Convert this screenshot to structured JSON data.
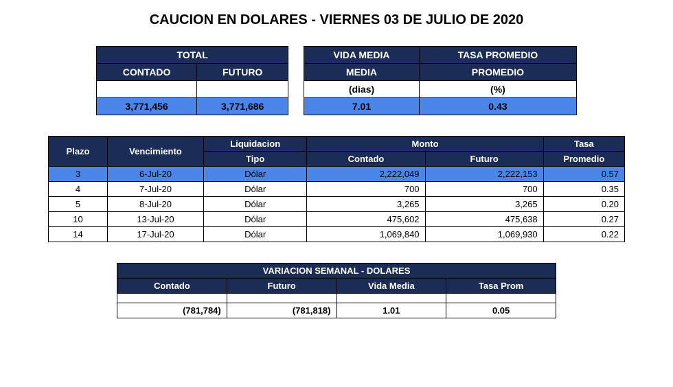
{
  "title": "CAUCION EN DOLARES - VIERNES 03 DE JULIO DE 2020",
  "colors": {
    "header_dark": "#1b2d56",
    "highlight_blue": "#4a86e8",
    "white": "#ffffff",
    "text": "#000000",
    "border": "#000000"
  },
  "summary": {
    "headers": {
      "total": "TOTAL",
      "contado": "CONTADO",
      "futuro": "FUTURO",
      "vida_media": "VIDA MEDIA",
      "tasa_promedio": "TASA PROMEDIO",
      "dias": "(dias)",
      "pct": "(%)"
    },
    "values": {
      "contado": "3,771,456",
      "futuro": "3,771,686",
      "vida_media": "7.01",
      "tasa_promedio": "0.43"
    }
  },
  "detail": {
    "headers": {
      "plazo": "Plazo",
      "vencimiento": "Vencimiento",
      "liquidacion": "Liquidacion",
      "tipo": "Tipo",
      "monto": "Monto",
      "contado": "Contado",
      "futuro": "Futuro",
      "tasa": "Tasa",
      "promedio": "Promedio"
    },
    "rows": [
      {
        "highlight": true,
        "plazo": "3",
        "venc": "6-Jul-20",
        "tipo": "Dólar",
        "contado": "2,222,049",
        "futuro": "2,222,153",
        "tasa": "0.57"
      },
      {
        "highlight": false,
        "plazo": "4",
        "venc": "7-Jul-20",
        "tipo": "Dólar",
        "contado": "700",
        "futuro": "700",
        "tasa": "0.35"
      },
      {
        "highlight": false,
        "plazo": "5",
        "venc": "8-Jul-20",
        "tipo": "Dólar",
        "contado": "3,265",
        "futuro": "3,265",
        "tasa": "0.20"
      },
      {
        "highlight": false,
        "plazo": "10",
        "venc": "13-Jul-20",
        "tipo": "Dólar",
        "contado": "475,602",
        "futuro": "475,638",
        "tasa": "0.27"
      },
      {
        "highlight": false,
        "plazo": "14",
        "venc": "17-Jul-20",
        "tipo": "Dólar",
        "contado": "1,069,840",
        "futuro": "1,069,930",
        "tasa": "0.22"
      }
    ]
  },
  "variation": {
    "title": "VARIACION SEMANAL - DOLARES",
    "headers": {
      "contado": "Contado",
      "futuro": "Futuro",
      "vida_media": "Vida Media",
      "tasa_prom": "Tasa Prom"
    },
    "values": {
      "contado": "(781,784)",
      "futuro": "(781,818)",
      "vida_media": "1.01",
      "tasa_prom": "0.05"
    }
  }
}
